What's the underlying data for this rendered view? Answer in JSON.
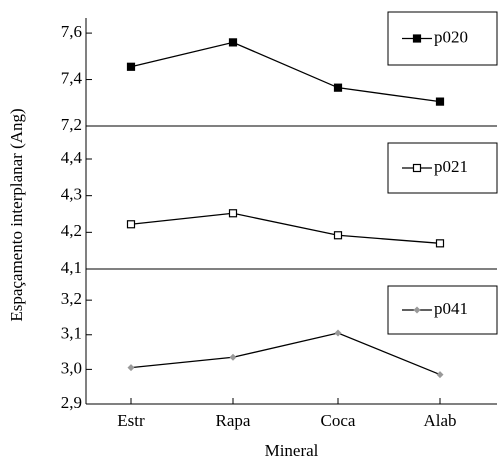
{
  "y_label": "Espaçamento interplanar (Ang)",
  "chart_data": [
    {
      "type": "line",
      "series": [
        {
          "name": "p020",
          "color": "#000000",
          "marker": "filled-square",
          "values": [
            7.455,
            7.56,
            7.365,
            7.305
          ]
        }
      ],
      "ylim": [
        7.2,
        7.665
      ],
      "yticks": [
        {
          "value": 7.2,
          "label": "7,2"
        },
        {
          "value": 7.4,
          "label": "7,4"
        },
        {
          "value": 7.6,
          "label": "7,6"
        }
      ]
    },
    {
      "type": "line",
      "series": [
        {
          "name": "p021",
          "color": "#000000",
          "marker": "open-square",
          "values": [
            4.222,
            4.252,
            4.192,
            4.17
          ]
        }
      ],
      "ylim": [
        4.1,
        4.49
      ],
      "yticks": [
        {
          "value": 4.1,
          "label": "4,1"
        },
        {
          "value": 4.2,
          "label": "4,2"
        },
        {
          "value": 4.3,
          "label": "4,3"
        },
        {
          "value": 4.4,
          "label": "4,4"
        }
      ]
    },
    {
      "type": "line",
      "series": [
        {
          "name": "p041",
          "color": "#999999",
          "marker": "diamond",
          "values": [
            3.005,
            3.035,
            3.105,
            2.985
          ]
        }
      ],
      "ylim": [
        2.9,
        3.29
      ],
      "yticks": [
        {
          "value": 2.9,
          "label": "2,9"
        },
        {
          "value": 3.0,
          "label": "3,0"
        },
        {
          "value": 3.1,
          "label": "3,1"
        },
        {
          "value": 3.2,
          "label": "3,2"
        }
      ],
      "categories": [
        "Estr",
        "Rapa",
        "Coca",
        "Alab"
      ],
      "x_label": "Mineral"
    }
  ]
}
